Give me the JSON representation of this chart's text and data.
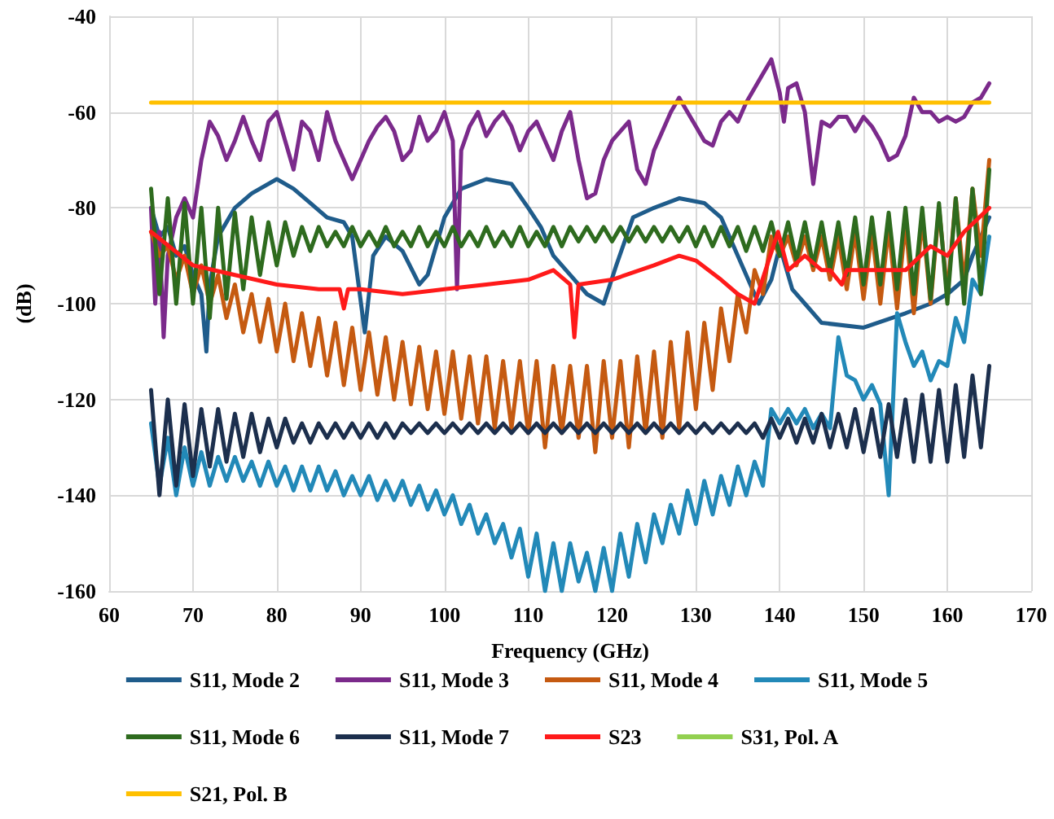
{
  "chart_data": {
    "type": "line",
    "xlabel": "Frequency (GHz)",
    "ylabel": "(dB)",
    "xlim": [
      60,
      170
    ],
    "xticks": [
      60,
      70,
      80,
      90,
      100,
      110,
      120,
      130,
      140,
      150,
      160,
      170
    ],
    "ylim": [
      -160,
      -40
    ],
    "yticks": [
      -160,
      -140,
      -120,
      -100,
      -80,
      -60,
      -40
    ],
    "grid": true,
    "legend": "bottom",
    "marker": "none",
    "line_style": "solid",
    "series": [
      {
        "name": "S11, Mode 2",
        "color": "#1f5c8b",
        "x": [
          65,
          66,
          67,
          68,
          69,
          70,
          71,
          71.6,
          72,
          73,
          75,
          77,
          80,
          82,
          84,
          86,
          88,
          89,
          90.5,
          91.5,
          93,
          95,
          97,
          98,
          100,
          102,
          105,
          108,
          110,
          111.5,
          113,
          115,
          117,
          119,
          120.5,
          122.5,
          125,
          128,
          131,
          133,
          135,
          137.5,
          139,
          140,
          141.5,
          143,
          145,
          150,
          155,
          158,
          160,
          162,
          163,
          165
        ],
        "values": [
          -80,
          -86,
          -84,
          -90,
          -88,
          -94,
          -98,
          -110,
          -96,
          -86,
          -80,
          -77,
          -74,
          -76,
          -79,
          -82,
          -83,
          -86,
          -106,
          -90,
          -86,
          -89,
          -96,
          -94,
          -82,
          -76,
          -74,
          -75,
          -80,
          -84,
          -90,
          -94,
          -98,
          -100,
          -92,
          -82,
          -80,
          -78,
          -79,
          -82,
          -90,
          -100,
          -95,
          -88,
          -97,
          -100,
          -104,
          -105,
          -102,
          -100,
          -98,
          -95,
          -90,
          -82
        ]
      },
      {
        "name": "S11, Mode 3",
        "color": "#7b2a8b",
        "x": [
          65,
          65.5,
          66,
          66.5,
          67,
          68,
          69,
          70,
          71,
          72,
          73,
          74,
          75,
          76,
          77,
          78,
          79,
          80,
          81,
          82,
          83,
          84,
          85,
          86,
          87,
          88,
          89,
          90,
          91,
          92,
          93,
          94,
          95,
          96,
          97,
          98,
          99,
          100,
          101,
          101.5,
          102,
          103,
          104,
          105,
          106,
          107,
          108,
          109,
          110,
          111,
          112,
          113,
          114,
          115,
          116,
          117,
          118,
          119,
          120,
          121,
          122,
          123,
          124,
          125,
          126,
          127,
          128,
          129,
          130,
          131,
          132,
          133,
          134,
          135,
          136,
          137,
          138,
          139,
          140,
          140.5,
          141,
          142,
          143,
          144,
          145,
          146,
          147,
          148,
          149,
          150,
          151,
          152,
          153,
          154,
          155,
          156,
          157,
          158,
          159,
          160,
          161,
          162,
          163,
          164,
          165
        ],
        "values": [
          -80,
          -100,
          -85,
          -107,
          -90,
          -82,
          -78,
          -82,
          -70,
          -62,
          -65,
          -70,
          -66,
          -61,
          -66,
          -70,
          -62,
          -60,
          -66,
          -72,
          -62,
          -64,
          -70,
          -60,
          -66,
          -70,
          -74,
          -70,
          -66,
          -63,
          -61,
          -64,
          -70,
          -68,
          -61,
          -66,
          -64,
          -60,
          -66,
          -97,
          -68,
          -63,
          -60,
          -65,
          -62,
          -60,
          -63,
          -68,
          -64,
          -62,
          -66,
          -70,
          -64,
          -60,
          -70,
          -78,
          -77,
          -70,
          -66,
          -64,
          -62,
          -72,
          -75,
          -68,
          -64,
          -60,
          -57,
          -60,
          -63,
          -66,
          -67,
          -62,
          -60,
          -62,
          -58,
          -55,
          -52,
          -49,
          -56,
          -62,
          -55,
          -54,
          -60,
          -75,
          -62,
          -63,
          -61,
          -61,
          -64,
          -61,
          -63,
          -66,
          -70,
          -69,
          -65,
          -57,
          -60,
          -60,
          -62,
          -61,
          -62,
          -61,
          -58,
          -57,
          -54
        ]
      },
      {
        "name": "S11, Mode 4",
        "color": "#c55a11",
        "x": [
          65,
          66,
          67,
          68,
          69,
          70,
          71,
          72,
          73,
          74,
          75,
          76,
          77,
          78,
          79,
          80,
          81,
          82,
          83,
          84,
          85,
          86,
          87,
          88,
          89,
          90,
          91,
          92,
          93,
          94,
          95,
          96,
          97,
          98,
          99,
          100,
          101,
          102,
          103,
          104,
          105,
          106,
          107,
          108,
          109,
          110,
          111,
          112,
          113,
          114,
          115,
          116,
          117,
          118,
          119,
          120,
          121,
          122,
          123,
          124,
          125,
          126,
          127,
          128,
          129,
          130,
          131,
          132,
          133,
          134,
          135,
          136,
          137,
          138,
          139,
          140,
          141,
          142,
          143,
          144,
          145,
          146,
          147,
          148,
          149,
          150,
          151,
          152,
          153,
          154,
          155,
          156,
          157,
          158,
          159,
          160,
          161,
          162,
          163,
          164,
          165
        ],
        "values": [
          -85,
          -90,
          -88,
          -95,
          -90,
          -98,
          -92,
          -100,
          -94,
          -103,
          -96,
          -106,
          -98,
          -108,
          -99,
          -110,
          -100,
          -112,
          -102,
          -113,
          -103,
          -115,
          -104,
          -117,
          -105,
          -118,
          -106,
          -119,
          -107,
          -120,
          -108,
          -121,
          -109,
          -122,
          -110,
          -123,
          -110,
          -124,
          -111,
          -125,
          -111,
          -126,
          -112,
          -126,
          -112,
          -127,
          -112,
          -130,
          -113,
          -127,
          -113,
          -128,
          -113,
          -131,
          -112,
          -128,
          -112,
          -130,
          -111,
          -127,
          -110,
          -128,
          -108,
          -126,
          -106,
          -122,
          -104,
          -118,
          -101,
          -112,
          -98,
          -106,
          -93,
          -98,
          -86,
          -90,
          -86,
          -92,
          -86,
          -93,
          -86,
          -95,
          -86,
          -97,
          -85,
          -99,
          -85,
          -100,
          -84,
          -101,
          -83,
          -102,
          -82,
          -100,
          -80,
          -98,
          -78,
          -96,
          -76,
          -90,
          -70
        ]
      },
      {
        "name": "S11, Mode 5",
        "color": "#2289b8",
        "x": [
          65,
          66,
          67,
          68,
          69,
          70,
          71,
          72,
          73,
          74,
          75,
          76,
          77,
          78,
          79,
          80,
          81,
          82,
          83,
          84,
          85,
          86,
          87,
          88,
          89,
          90,
          91,
          92,
          93,
          94,
          95,
          96,
          97,
          98,
          99,
          100,
          101,
          102,
          103,
          104,
          105,
          106,
          107,
          108,
          109,
          110,
          111,
          112,
          113,
          114,
          115,
          116,
          117,
          118,
          119,
          120,
          121,
          122,
          123,
          124,
          125,
          126,
          127,
          128,
          129,
          130,
          131,
          132,
          133,
          134,
          135,
          136,
          137,
          138,
          139,
          140,
          141,
          142,
          143,
          144,
          145,
          146,
          147,
          148,
          149,
          150,
          151,
          152,
          153,
          154,
          155,
          156,
          157,
          158,
          159,
          160,
          161,
          162,
          163,
          164,
          165
        ],
        "values": [
          -125,
          -138,
          -128,
          -140,
          -130,
          -138,
          -131,
          -138,
          -132,
          -137,
          -132,
          -137,
          -133,
          -138,
          -133,
          -138,
          -134,
          -139,
          -134,
          -139,
          -134,
          -139,
          -135,
          -140,
          -136,
          -140,
          -136,
          -141,
          -137,
          -141,
          -137,
          -142,
          -138,
          -143,
          -139,
          -144,
          -140,
          -146,
          -142,
          -148,
          -144,
          -150,
          -146,
          -153,
          -147,
          -157,
          -148,
          -160,
          -150,
          -160,
          -150,
          -158,
          -152,
          -160,
          -151,
          -160,
          -148,
          -157,
          -146,
          -154,
          -144,
          -150,
          -142,
          -148,
          -139,
          -146,
          -137,
          -144,
          -136,
          -142,
          -134,
          -140,
          -133,
          -138,
          -122,
          -125,
          -122,
          -125,
          -122,
          -126,
          -123,
          -126,
          -107,
          -115,
          -116,
          -120,
          -117,
          -121,
          -140,
          -102,
          -108,
          -113,
          -110,
          -116,
          -112,
          -113,
          -103,
          -108,
          -95,
          -98,
          -86
        ]
      },
      {
        "name": "S11, Mode 6",
        "color": "#2e6b1e",
        "x": [
          65,
          66,
          67,
          68,
          69,
          70,
          71,
          72,
          73,
          74,
          75,
          76,
          77,
          78,
          79,
          80,
          81,
          82,
          83,
          84,
          85,
          86,
          87,
          88,
          89,
          90,
          91,
          92,
          93,
          94,
          95,
          96,
          97,
          98,
          99,
          100,
          101,
          102,
          103,
          104,
          105,
          106,
          107,
          108,
          109,
          110,
          111,
          112,
          113,
          114,
          115,
          116,
          117,
          118,
          119,
          120,
          121,
          122,
          123,
          124,
          125,
          126,
          127,
          128,
          129,
          130,
          131,
          132,
          133,
          134,
          135,
          136,
          137,
          138,
          139,
          140,
          141,
          142,
          143,
          144,
          145,
          146,
          147,
          148,
          149,
          150,
          151,
          152,
          153,
          154,
          155,
          156,
          157,
          158,
          159,
          160,
          161,
          162,
          163,
          164,
          165
        ],
        "values": [
          -76,
          -98,
          -78,
          -100,
          -79,
          -100,
          -80,
          -103,
          -80,
          -99,
          -81,
          -97,
          -82,
          -94,
          -83,
          -92,
          -83,
          -90,
          -84,
          -89,
          -84,
          -88,
          -85,
          -88,
          -84,
          -88,
          -85,
          -88,
          -84,
          -88,
          -85,
          -88,
          -84,
          -88,
          -85,
          -88,
          -84,
          -88,
          -85,
          -88,
          -84,
          -88,
          -85,
          -88,
          -84,
          -88,
          -85,
          -88,
          -84,
          -88,
          -84,
          -87,
          -84,
          -87,
          -84,
          -87,
          -84,
          -87,
          -84,
          -87,
          -84,
          -87,
          -84,
          -87,
          -84,
          -88,
          -84,
          -88,
          -84,
          -88,
          -84,
          -89,
          -84,
          -89,
          -83,
          -90,
          -83,
          -91,
          -83,
          -92,
          -83,
          -93,
          -83,
          -94,
          -82,
          -96,
          -82,
          -96,
          -81,
          -97,
          -80,
          -98,
          -80,
          -99,
          -79,
          -100,
          -78,
          -100,
          -76,
          -98,
          -72
        ]
      },
      {
        "name": "S11, Mode 7",
        "color": "#1c2f4d",
        "x": [
          65,
          66,
          67,
          68,
          69,
          70,
          71,
          72,
          73,
          74,
          75,
          76,
          77,
          78,
          79,
          80,
          81,
          82,
          83,
          84,
          85,
          86,
          87,
          88,
          89,
          90,
          91,
          92,
          93,
          94,
          95,
          96,
          97,
          98,
          99,
          100,
          101,
          102,
          103,
          104,
          105,
          106,
          107,
          108,
          109,
          110,
          111,
          112,
          113,
          114,
          115,
          116,
          117,
          118,
          119,
          120,
          121,
          122,
          123,
          124,
          125,
          126,
          127,
          128,
          129,
          130,
          131,
          132,
          133,
          134,
          135,
          136,
          137,
          138,
          139,
          140,
          141,
          142,
          143,
          144,
          145,
          146,
          147,
          148,
          149,
          150,
          151,
          152,
          153,
          154,
          155,
          156,
          157,
          158,
          159,
          160,
          161,
          162,
          163,
          164,
          165
        ],
        "values": [
          -118,
          -140,
          -120,
          -138,
          -121,
          -136,
          -122,
          -134,
          -122,
          -133,
          -123,
          -132,
          -123,
          -131,
          -124,
          -130,
          -124,
          -129,
          -125,
          -129,
          -125,
          -128,
          -125,
          -128,
          -125,
          -128,
          -125,
          -128,
          -125,
          -128,
          -125,
          -127,
          -125,
          -127,
          -125,
          -127,
          -125,
          -127,
          -125,
          -127,
          -125,
          -127,
          -125,
          -127,
          -125,
          -127,
          -125,
          -127,
          -125,
          -127,
          -125,
          -127,
          -125,
          -127,
          -125,
          -127,
          -125,
          -127,
          -125,
          -127,
          -125,
          -127,
          -125,
          -127,
          -125,
          -127,
          -125,
          -127,
          -125,
          -127,
          -125,
          -127,
          -125,
          -128,
          -124,
          -128,
          -124,
          -129,
          -124,
          -129,
          -123,
          -130,
          -123,
          -130,
          -122,
          -131,
          -122,
          -132,
          -121,
          -132,
          -120,
          -133,
          -119,
          -133,
          -118,
          -133,
          -117,
          -132,
          -115,
          -130,
          -113
        ]
      },
      {
        "name": "S23",
        "color": "#ff1a1a",
        "x": [
          65,
          70,
          75,
          80,
          85,
          87.5,
          88,
          88.5,
          90,
          95,
          100,
          105,
          110,
          113,
          115,
          115.5,
          116,
          120,
          125,
          128,
          130,
          133,
          135,
          137,
          139.8,
          141,
          143,
          145,
          146,
          147.4,
          148,
          150,
          155,
          158,
          160,
          162,
          165
        ],
        "values": [
          -85,
          -92,
          -94,
          -96,
          -97,
          -97,
          -101,
          -97,
          -97,
          -98,
          -97,
          -96,
          -95,
          -93,
          -96,
          -107,
          -96,
          -95,
          -92,
          -90,
          -91,
          -95,
          -98,
          -100,
          -85,
          -93,
          -90,
          -93,
          -93,
          -96,
          -93,
          -93,
          -93,
          -88,
          -90,
          -85,
          -80
        ]
      },
      {
        "name": "S31, Pol. A",
        "color": "#92d050"
      },
      {
        "name": "S21, Pol. B",
        "color": "#ffc000",
        "x": [
          65,
          165
        ],
        "values": [
          -58,
          -58
        ]
      }
    ]
  }
}
